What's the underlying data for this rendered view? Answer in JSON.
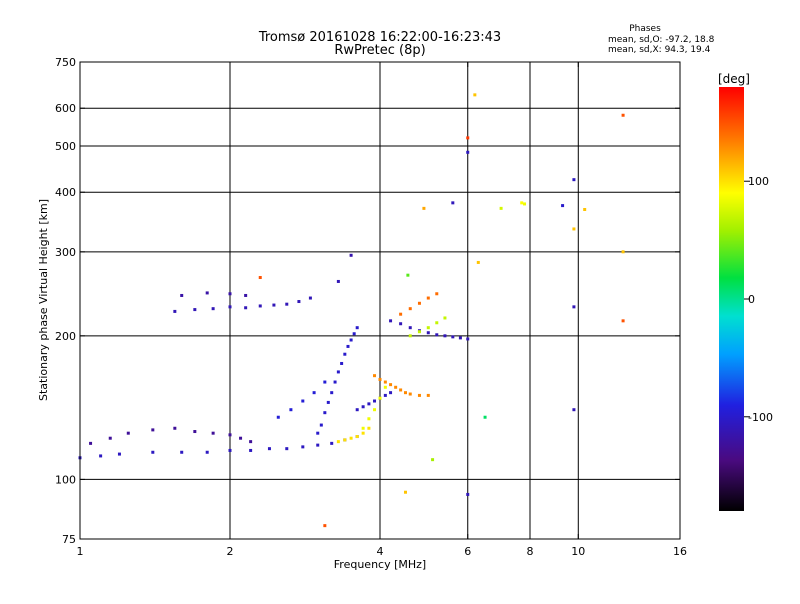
{
  "chart_data": {
    "type": "scatter",
    "title": "Tromsø 20161028 16:22:00-16:23:43",
    "subtitle": "RwPretec (8p)",
    "xlabel": "Frequency [MHz]",
    "ylabel": "Stationary phase Virtual Height [km]",
    "x_scale": "log",
    "y_scale": "log",
    "xlim": [
      1,
      16
    ],
    "ylim": [
      75,
      750
    ],
    "x_ticks": [
      1,
      2,
      4,
      6,
      8,
      10,
      16
    ],
    "x_tick_labels": [
      "1",
      "2",
      "4",
      "6",
      "8",
      "10",
      "16"
    ],
    "y_ticks": [
      75,
      100,
      200,
      300,
      400,
      500,
      600,
      750
    ],
    "y_tick_labels": [
      "75",
      "100",
      "200",
      "300",
      "400",
      "500",
      "600",
      "750"
    ],
    "grid": true,
    "grid_x": [
      2,
      4,
      6,
      8,
      10
    ],
    "grid_y": [
      100,
      200,
      300,
      400,
      500,
      600
    ],
    "colorbar": {
      "label": "[deg]",
      "range": [
        -180,
        180
      ],
      "ticks": [
        100,
        0,
        -100
      ],
      "tick_labels": [
        "100",
        "0",
        "-100"
      ]
    },
    "annotation": {
      "heading": "Phases",
      "line1": "mean, sd,O: -97.2, 18.8",
      "line2": "mean, sd,X:  94.3, 19.4"
    },
    "traces": [
      {
        "x": [
          1.0,
          1.1,
          1.2,
          1.4,
          1.6,
          1.8,
          2.0,
          2.2,
          2.4,
          2.6,
          2.8,
          3.0,
          3.2,
          3.4,
          3.6
        ],
        "y": [
          111,
          112,
          113,
          114,
          114,
          114,
          115,
          115,
          116,
          116,
          117,
          118,
          119,
          121,
          123
        ],
        "phase": -105
      },
      {
        "x": [
          1.05,
          1.15,
          1.25,
          1.4,
          1.55,
          1.7,
          1.85,
          2.0,
          2.1,
          2.2
        ],
        "y": [
          119,
          122,
          125,
          127,
          128,
          126,
          125,
          124,
          122,
          120
        ],
        "phase": -125
      },
      {
        "x": [
          1.55,
          1.7,
          1.85,
          2.0,
          2.15,
          2.3,
          2.45,
          2.6,
          2.75,
          2.9
        ],
        "y": [
          225,
          227,
          228,
          230,
          229,
          231,
          232,
          233,
          236,
          240
        ],
        "phase": -110
      },
      {
        "x": [
          1.6,
          1.8,
          2.0,
          2.15
        ],
        "y": [
          243,
          246,
          245,
          243
        ],
        "phase": -118
      },
      {
        "x": [
          2.5,
          2.65,
          2.8,
          2.95,
          3.1
        ],
        "y": [
          135,
          140,
          146,
          152,
          160
        ],
        "phase": -95
      },
      {
        "x": [
          3.0,
          3.05,
          3.1,
          3.15,
          3.2,
          3.25,
          3.3,
          3.35,
          3.4,
          3.45,
          3.5,
          3.55,
          3.6
        ],
        "y": [
          125,
          130,
          138,
          145,
          152,
          160,
          168,
          175,
          183,
          190,
          196,
          202,
          208
        ],
        "phase": -100
      },
      {
        "x": [
          3.3,
          3.4,
          3.5,
          3.6,
          3.7,
          3.8
        ],
        "y": [
          120,
          121,
          122,
          123,
          125,
          128
        ],
        "phase": 100
      },
      {
        "x": [
          3.6,
          3.7,
          3.8,
          3.9,
          4.0,
          4.1,
          4.2
        ],
        "y": [
          140,
          142,
          144,
          146,
          148,
          150,
          152
        ],
        "phase": -105
      },
      {
        "x": [
          3.9,
          4.0,
          4.1,
          4.2,
          4.3,
          4.4,
          4.5,
          4.6,
          4.8,
          5.0
        ],
        "y": [
          165,
          162,
          160,
          158,
          156,
          154,
          152,
          151,
          150,
          150
        ],
        "phase": 130
      },
      {
        "x": [
          3.7,
          3.8,
          3.9,
          4.0,
          4.1
        ],
        "y": [
          128,
          134,
          140,
          148,
          156
        ],
        "phase": 85
      },
      {
        "x": [
          4.2,
          4.4,
          4.6,
          4.8,
          5.0,
          5.2,
          5.4,
          5.6,
          5.8,
          6.0
        ],
        "y": [
          215,
          212,
          208,
          205,
          203,
          201,
          200,
          199,
          198,
          197
        ],
        "phase": -110
      },
      {
        "x": [
          4.6,
          4.8,
          5.0,
          5.2,
          5.4
        ],
        "y": [
          200,
          204,
          208,
          213,
          218
        ],
        "phase": 70
      },
      {
        "x": [
          4.4,
          4.6,
          4.8,
          5.0,
          5.2
        ],
        "y": [
          222,
          228,
          234,
          240,
          245
        ],
        "phase": 140
      }
    ],
    "scatter_points": [
      {
        "x": 3.3,
        "y": 260,
        "phase": -110
      },
      {
        "x": 3.5,
        "y": 295,
        "phase": -115
      },
      {
        "x": 2.3,
        "y": 265,
        "phase": 150
      },
      {
        "x": 4.55,
        "y": 268,
        "phase": 40
      },
      {
        "x": 4.9,
        "y": 370,
        "phase": 120
      },
      {
        "x": 5.6,
        "y": 380,
        "phase": -108
      },
      {
        "x": 6.0,
        "y": 520,
        "phase": 160
      },
      {
        "x": 6.0,
        "y": 485,
        "phase": -105
      },
      {
        "x": 6.2,
        "y": 640,
        "phase": 110
      },
      {
        "x": 6.3,
        "y": 285,
        "phase": 110
      },
      {
        "x": 7.0,
        "y": 370,
        "phase": 75
      },
      {
        "x": 7.7,
        "y": 380,
        "phase": 90
      },
      {
        "x": 7.8,
        "y": 378,
        "phase": 85
      },
      {
        "x": 9.3,
        "y": 375,
        "phase": -100
      },
      {
        "x": 9.8,
        "y": 425,
        "phase": -105
      },
      {
        "x": 9.8,
        "y": 335,
        "phase": 110
      },
      {
        "x": 9.8,
        "y": 230,
        "phase": -110
      },
      {
        "x": 9.8,
        "y": 140,
        "phase": -110
      },
      {
        "x": 10.3,
        "y": 368,
        "phase": 110
      },
      {
        "x": 12.3,
        "y": 580,
        "phase": 150
      },
      {
        "x": 12.3,
        "y": 300,
        "phase": 110
      },
      {
        "x": 12.3,
        "y": 215,
        "phase": 150
      },
      {
        "x": 6.0,
        "y": 93,
        "phase": -108
      },
      {
        "x": 4.5,
        "y": 94,
        "phase": 110
      },
      {
        "x": 3.1,
        "y": 80,
        "phase": 150
      },
      {
        "x": 5.1,
        "y": 110,
        "phase": 60
      },
      {
        "x": 6.5,
        "y": 135,
        "phase": 10
      }
    ]
  }
}
